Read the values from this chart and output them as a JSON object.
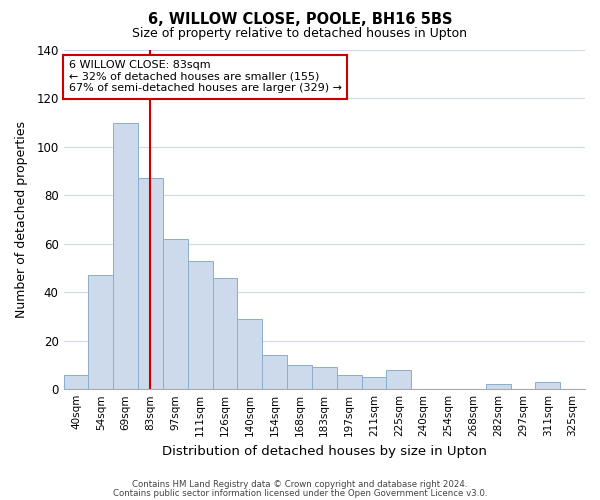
{
  "title": "6, WILLOW CLOSE, POOLE, BH16 5BS",
  "subtitle": "Size of property relative to detached houses in Upton",
  "xlabel": "Distribution of detached houses by size in Upton",
  "ylabel": "Number of detached properties",
  "categories": [
    "40sqm",
    "54sqm",
    "69sqm",
    "83sqm",
    "97sqm",
    "111sqm",
    "126sqm",
    "140sqm",
    "154sqm",
    "168sqm",
    "183sqm",
    "197sqm",
    "211sqm",
    "225sqm",
    "240sqm",
    "254sqm",
    "268sqm",
    "282sqm",
    "297sqm",
    "311sqm",
    "325sqm"
  ],
  "values": [
    6,
    47,
    110,
    87,
    62,
    53,
    46,
    29,
    14,
    10,
    9,
    6,
    5,
    8,
    0,
    0,
    0,
    2,
    0,
    3,
    0
  ],
  "bar_color": "#cddaeb",
  "bar_edge_color": "#8aaecf",
  "vline_x_index": 3,
  "vline_color": "#cc0000",
  "ylim": [
    0,
    140
  ],
  "yticks": [
    0,
    20,
    40,
    60,
    80,
    100,
    120,
    140
  ],
  "annotation_title": "6 WILLOW CLOSE: 83sqm",
  "annotation_line1": "← 32% of detached houses are smaller (155)",
  "annotation_line2": "67% of semi-detached houses are larger (329) →",
  "annotation_box_color": "#ffffff",
  "annotation_box_edge_color": "#cc0000",
  "footer1": "Contains HM Land Registry data © Crown copyright and database right 2024.",
  "footer2": "Contains public sector information licensed under the Open Government Licence v3.0.",
  "background_color": "#ffffff",
  "grid_color": "#cddaeb"
}
